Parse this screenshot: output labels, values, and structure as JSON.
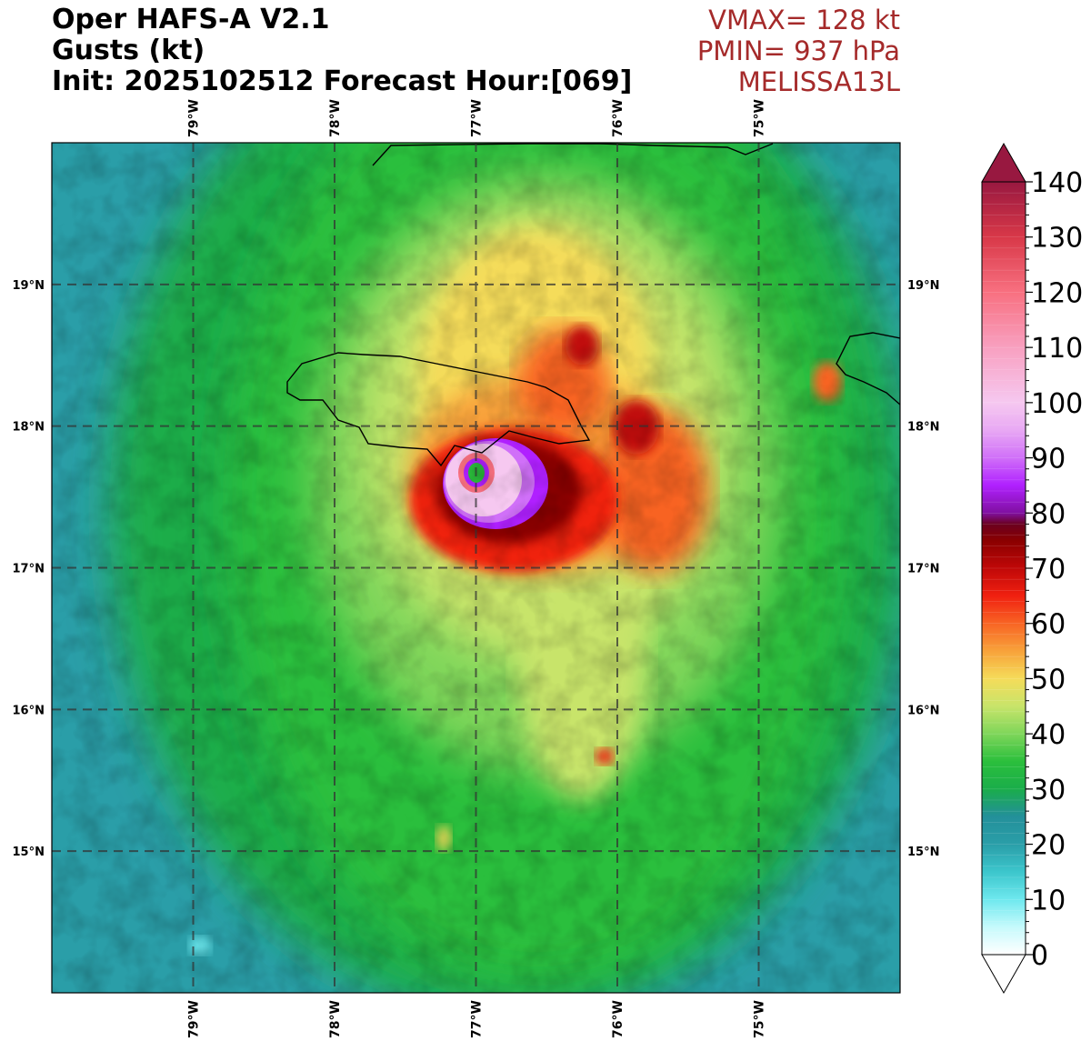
{
  "header": {
    "title_line1": "Oper HAFS-A V2.1",
    "title_line2": "Gusts (kt)",
    "title_line3": "Init: 2025102512 Forecast Hour:[069]",
    "vmax": "VMAX= 128 kt",
    "pmin": "PMIN= 937 hPa",
    "storm": "MELISSA13L"
  },
  "map": {
    "lon_labels": [
      "79°W",
      "78°W",
      "77°W",
      "76°W",
      "75°W"
    ],
    "lat_labels": [
      "19°N",
      "18°N",
      "17°N",
      "16°N",
      "15°N"
    ],
    "lon_values": [
      -79,
      -78,
      -77,
      -76,
      -75
    ],
    "lat_values": [
      19,
      18,
      17,
      16,
      15
    ],
    "extent": {
      "lon_min": -80,
      "lon_max": -74,
      "lat_min": 14,
      "lat_max": 20
    },
    "storm_center": {
      "lon": -77.0,
      "lat": 17.67
    }
  },
  "colorbar": {
    "ticks": [
      "0",
      "10",
      "20",
      "30",
      "40",
      "50",
      "60",
      "70",
      "80",
      "90",
      "100",
      "110",
      "120",
      "130",
      "140"
    ],
    "min": 0,
    "max": 140,
    "stops": [
      {
        "v": 0,
        "c": "#ffffff"
      },
      {
        "v": 5,
        "c": "#c6fafc"
      },
      {
        "v": 10,
        "c": "#6ee8ee"
      },
      {
        "v": 15,
        "c": "#3cc6cc"
      },
      {
        "v": 20,
        "c": "#2a9ea8"
      },
      {
        "v": 25,
        "c": "#23909a"
      },
      {
        "v": 30,
        "c": "#1aad4a"
      },
      {
        "v": 35,
        "c": "#2bbf3c"
      },
      {
        "v": 40,
        "c": "#7fd65a"
      },
      {
        "v": 45,
        "c": "#c8e46a"
      },
      {
        "v": 50,
        "c": "#f5dc5a"
      },
      {
        "v": 55,
        "c": "#f8a23a"
      },
      {
        "v": 60,
        "c": "#f86424"
      },
      {
        "v": 65,
        "c": "#f02010"
      },
      {
        "v": 70,
        "c": "#c00808"
      },
      {
        "v": 75,
        "c": "#8a0000"
      },
      {
        "v": 78,
        "c": "#6a0020"
      },
      {
        "v": 80,
        "c": "#8010a0"
      },
      {
        "v": 85,
        "c": "#b020ff"
      },
      {
        "v": 90,
        "c": "#d070f8"
      },
      {
        "v": 95,
        "c": "#e8a8f4"
      },
      {
        "v": 100,
        "c": "#f6c8f0"
      },
      {
        "v": 110,
        "c": "#f8a0c0"
      },
      {
        "v": 120,
        "c": "#f87080"
      },
      {
        "v": 130,
        "c": "#d83848"
      },
      {
        "v": 140,
        "c": "#981840"
      }
    ]
  }
}
